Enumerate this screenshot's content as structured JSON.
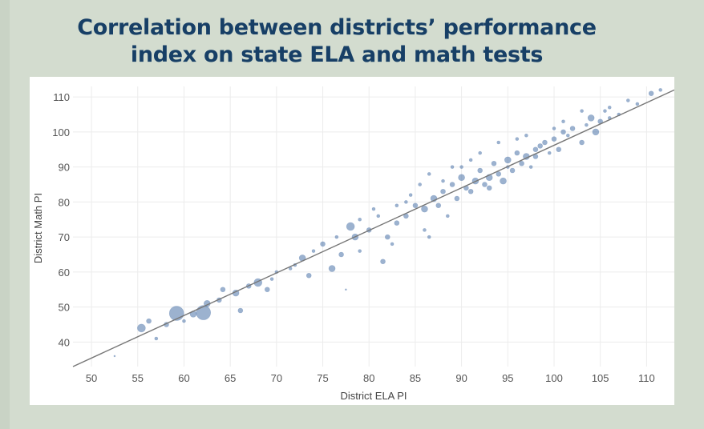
{
  "chart_data": {
    "type": "scatter",
    "title_lines": [
      "Correlation between districts’ performance",
      "index on state ELA and math tests"
    ],
    "xlabel": "District ELA PI",
    "ylabel": "District Math PI",
    "xlim": [
      48,
      113
    ],
    "ylim": [
      33,
      113
    ],
    "xticks": [
      "50",
      "55",
      "60",
      "65",
      "70",
      "75",
      "80",
      "85",
      "90",
      "95",
      "100",
      "105",
      "110"
    ],
    "yticks": [
      "40",
      "50",
      "60",
      "70",
      "80",
      "90",
      "100",
      "110"
    ],
    "trendline": {
      "x": [
        48,
        113
      ],
      "y": [
        33,
        112
      ]
    },
    "grid": true,
    "point_color": "#4a73a8",
    "trend_color": "#777777",
    "points": [
      [
        52.5,
        36,
        1
      ],
      [
        55.4,
        44,
        5
      ],
      [
        56.2,
        46,
        3
      ],
      [
        57,
        41,
        2
      ],
      [
        58.1,
        45,
        3
      ],
      [
        59.2,
        48.2,
        9
      ],
      [
        60,
        46,
        2
      ],
      [
        61,
        48,
        4
      ],
      [
        62.1,
        48.4,
        9
      ],
      [
        62.5,
        51,
        4
      ],
      [
        63.8,
        52,
        3
      ],
      [
        64.2,
        55,
        3
      ],
      [
        65.6,
        54,
        4
      ],
      [
        66.1,
        49,
        3
      ],
      [
        67,
        56,
        3
      ],
      [
        68,
        57,
        5
      ],
      [
        69,
        55,
        3
      ],
      [
        69.5,
        58,
        2
      ],
      [
        70,
        60,
        2
      ],
      [
        71.5,
        61,
        2
      ],
      [
        72.8,
        64,
        4
      ],
      [
        73.5,
        59,
        3
      ],
      [
        75,
        68,
        3
      ],
      [
        76,
        61,
        4
      ],
      [
        77,
        65,
        3
      ],
      [
        78,
        73,
        5
      ],
      [
        78.5,
        70,
        4
      ],
      [
        79,
        66,
        2
      ],
      [
        80,
        72,
        3
      ],
      [
        81,
        76,
        2
      ],
      [
        81.5,
        63,
        3
      ],
      [
        82,
        70,
        3
      ],
      [
        83,
        74,
        3
      ],
      [
        84,
        76,
        3
      ],
      [
        85,
        79,
        3
      ],
      [
        86,
        78,
        4
      ],
      [
        86.5,
        70,
        2
      ],
      [
        87,
        81,
        4
      ],
      [
        88,
        83,
        3
      ],
      [
        88.5,
        76,
        2
      ],
      [
        89,
        85,
        3
      ],
      [
        89.5,
        81,
        3
      ],
      [
        90,
        87,
        4
      ],
      [
        90.5,
        84,
        3
      ],
      [
        91,
        83,
        3
      ],
      [
        91.5,
        86,
        4
      ],
      [
        92,
        89,
        3
      ],
      [
        92.5,
        85,
        3
      ],
      [
        93,
        87,
        4
      ],
      [
        93.5,
        91,
        3
      ],
      [
        94,
        88,
        3
      ],
      [
        94.5,
        86,
        4
      ],
      [
        95,
        92,
        4
      ],
      [
        95.5,
        89,
        3
      ],
      [
        96,
        94,
        3
      ],
      [
        96.5,
        91,
        3
      ],
      [
        97,
        93,
        4
      ],
      [
        97.5,
        90,
        2
      ],
      [
        98,
        95,
        3
      ],
      [
        98.5,
        96,
        3
      ],
      [
        99,
        97,
        3
      ],
      [
        99.5,
        94,
        2
      ],
      [
        100,
        98,
        3
      ],
      [
        100.5,
        95,
        3
      ],
      [
        101,
        100,
        3
      ],
      [
        101.5,
        99,
        2
      ],
      [
        102,
        101,
        3
      ],
      [
        103,
        97,
        3
      ],
      [
        103.5,
        102,
        2
      ],
      [
        104,
        104,
        4
      ],
      [
        104.5,
        100,
        4
      ],
      [
        105,
        103,
        3
      ],
      [
        105.5,
        106,
        2
      ],
      [
        106,
        107,
        2
      ],
      [
        107,
        105,
        2
      ],
      [
        108,
        109,
        2
      ],
      [
        109,
        108,
        2
      ],
      [
        110.5,
        111,
        3
      ],
      [
        111.5,
        112,
        2
      ],
      [
        86,
        72,
        2
      ],
      [
        89,
        90,
        2
      ],
      [
        92,
        94,
        2
      ],
      [
        94,
        97,
        2
      ],
      [
        96,
        98,
        2
      ],
      [
        79,
        75,
        2
      ],
      [
        76.5,
        70,
        2
      ],
      [
        83,
        79,
        2
      ],
      [
        84.5,
        82,
        2
      ],
      [
        87.5,
        79,
        3
      ],
      [
        90,
        90,
        2
      ],
      [
        93,
        84,
        3
      ],
      [
        95,
        90,
        2
      ],
      [
        98,
        93,
        3
      ],
      [
        100,
        101,
        2
      ],
      [
        103,
        106,
        2
      ],
      [
        82.5,
        68,
        2
      ],
      [
        77.5,
        55,
        1
      ],
      [
        72,
        62,
        2
      ],
      [
        74,
        66,
        2
      ],
      [
        80.5,
        78,
        2
      ],
      [
        85.5,
        85,
        2
      ],
      [
        91,
        92,
        2
      ],
      [
        97,
        99,
        2
      ],
      [
        101,
        103,
        2
      ],
      [
        106,
        104,
        2
      ],
      [
        88,
        86,
        2
      ],
      [
        86.5,
        88,
        2
      ],
      [
        84,
        80,
        2
      ]
    ]
  }
}
